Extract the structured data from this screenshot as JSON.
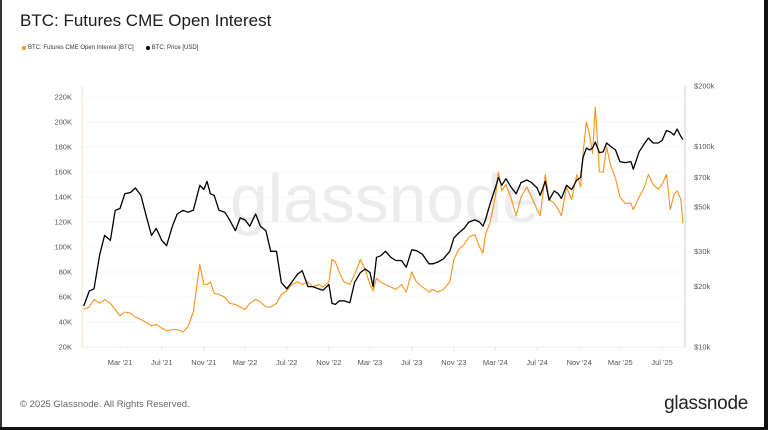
{
  "title": "BTC: Futures CME Open Interest",
  "footer": "© 2025 Glassnode. All Rights Reserved.",
  "logo": "glassnode",
  "watermark": "glassnode",
  "chart_data": {
    "type": "line",
    "title": "BTC: Futures CME Open Interest",
    "legend_position": "top-left",
    "grid": true,
    "x_range": [
      "2020-11-10",
      "2025-09-06"
    ],
    "x_tick_labels": [
      "Mar '21",
      "Jul '21",
      "Nov '21",
      "Mar '22",
      "Jul '22",
      "Nov '22",
      "Mar '23",
      "Jul '23",
      "Nov '23",
      "Mar '24",
      "Jul '24",
      "Nov '24",
      "Mar '25",
      "Jul '25"
    ],
    "x_tick_dates": [
      "2021-03-01",
      "2021-07-01",
      "2021-11-01",
      "2022-03-01",
      "2022-07-01",
      "2022-11-01",
      "2023-03-01",
      "2023-07-01",
      "2023-11-01",
      "2024-03-01",
      "2024-07-01",
      "2024-11-01",
      "2025-03-01",
      "2025-07-01"
    ],
    "y_left": {
      "range": [
        20000,
        220000
      ],
      "scale": "linear",
      "ticks": [
        20000,
        40000,
        60000,
        80000,
        100000,
        120000,
        140000,
        160000,
        180000,
        200000,
        220000
      ],
      "tick_labels": [
        "20K",
        "40K",
        "60K",
        "80K",
        "100K",
        "120K",
        "140K",
        "160K",
        "180K",
        "200K",
        "220K"
      ]
    },
    "y_right": {
      "range": [
        10000,
        200000
      ],
      "scale": "log",
      "ticks": [
        10000,
        20000,
        30000,
        50000,
        70000,
        100000,
        200000
      ],
      "tick_labels": [
        "$10k",
        "$20k",
        "$30k",
        "$50k",
        "$70k",
        "$100k",
        "$200k"
      ]
    },
    "series": [
      {
        "name": "BTC: Futures CME Open Interest [BTC]",
        "color": "#f7931a",
        "axis": "left"
      },
      {
        "name": "BTC: Price [USD]",
        "color": "#000000",
        "axis": "right"
      }
    ],
    "points": [
      [
        "2020-11-15",
        50000,
        16000
      ],
      [
        "2020-12-01",
        52000,
        19000
      ],
      [
        "2020-12-15",
        58000,
        19500
      ],
      [
        "2021-01-01",
        55000,
        29000
      ],
      [
        "2021-01-15",
        58000,
        36000
      ],
      [
        "2021-02-01",
        55000,
        34000
      ],
      [
        "2021-02-15",
        50000,
        48000
      ],
      [
        "2021-03-01",
        45000,
        49000
      ],
      [
        "2021-03-15",
        48000,
        58000
      ],
      [
        "2021-04-01",
        47000,
        59000
      ],
      [
        "2021-04-15",
        44000,
        62000
      ],
      [
        "2021-05-01",
        42000,
        57000
      ],
      [
        "2021-05-15",
        40000,
        46000
      ],
      [
        "2021-06-01",
        37000,
        36000
      ],
      [
        "2021-06-15",
        38000,
        39000
      ],
      [
        "2021-07-01",
        35000,
        34000
      ],
      [
        "2021-07-15",
        33000,
        32000
      ],
      [
        "2021-08-01",
        34000,
        40000
      ],
      [
        "2021-08-15",
        34000,
        46000
      ],
      [
        "2021-09-01",
        32000,
        48000
      ],
      [
        "2021-09-15",
        36000,
        47000
      ],
      [
        "2021-10-01",
        48000,
        48000
      ],
      [
        "2021-10-20",
        86000,
        64000
      ],
      [
        "2021-11-01",
        70000,
        61000
      ],
      [
        "2021-11-10",
        70000,
        67000
      ],
      [
        "2021-11-20",
        72000,
        58000
      ],
      [
        "2021-12-01",
        63000,
        57000
      ],
      [
        "2021-12-15",
        62000,
        48000
      ],
      [
        "2022-01-01",
        60000,
        47000
      ],
      [
        "2022-01-15",
        55000,
        43000
      ],
      [
        "2022-02-01",
        54000,
        38000
      ],
      [
        "2022-02-15",
        52000,
        44000
      ],
      [
        "2022-03-01",
        50000,
        43000
      ],
      [
        "2022-03-15",
        55000,
        40000
      ],
      [
        "2022-04-01",
        58000,
        46000
      ],
      [
        "2022-04-15",
        56000,
        40000
      ],
      [
        "2022-05-01",
        52000,
        38000
      ],
      [
        "2022-05-15",
        52000,
        30000
      ],
      [
        "2022-06-01",
        55000,
        30000
      ],
      [
        "2022-06-15",
        62000,
        21000
      ],
      [
        "2022-07-01",
        65000,
        19500
      ],
      [
        "2022-07-15",
        70000,
        21000
      ],
      [
        "2022-08-01",
        72000,
        23000
      ],
      [
        "2022-08-15",
        70000,
        24000
      ],
      [
        "2022-09-01",
        72000,
        20000
      ],
      [
        "2022-09-15",
        68000,
        20000
      ],
      [
        "2022-10-01",
        70000,
        19500
      ],
      [
        "2022-10-15",
        68000,
        19200
      ],
      [
        "2022-11-01",
        72000,
        20500
      ],
      [
        "2022-11-10",
        90000,
        16500
      ],
      [
        "2022-11-20",
        88000,
        16300
      ],
      [
        "2022-12-01",
        80000,
        17000
      ],
      [
        "2022-12-15",
        72000,
        17000
      ],
      [
        "2023-01-01",
        70000,
        16600
      ],
      [
        "2023-01-15",
        78000,
        21000
      ],
      [
        "2023-02-01",
        90000,
        23500
      ],
      [
        "2023-02-15",
        82000,
        24500
      ],
      [
        "2023-03-01",
        70000,
        23500
      ],
      [
        "2023-03-10",
        65000,
        20000
      ],
      [
        "2023-03-20",
        75000,
        28000
      ],
      [
        "2023-04-01",
        72000,
        28500
      ],
      [
        "2023-04-15",
        70000,
        30000
      ],
      [
        "2023-05-01",
        68000,
        28000
      ],
      [
        "2023-05-15",
        66000,
        27000
      ],
      [
        "2023-06-01",
        70000,
        27000
      ],
      [
        "2023-06-15",
        64000,
        25000
      ],
      [
        "2023-07-01",
        80000,
        30500
      ],
      [
        "2023-07-15",
        72000,
        30200
      ],
      [
        "2023-08-01",
        68000,
        29000
      ],
      [
        "2023-08-20",
        64000,
        26000
      ],
      [
        "2023-09-01",
        66000,
        26000
      ],
      [
        "2023-09-15",
        64000,
        26500
      ],
      [
        "2023-10-01",
        66000,
        27500
      ],
      [
        "2023-10-20",
        72000,
        30000
      ],
      [
        "2023-11-01",
        90000,
        35000
      ],
      [
        "2023-11-15",
        98000,
        37000
      ],
      [
        "2023-12-01",
        102000,
        39000
      ],
      [
        "2023-12-15",
        108000,
        42000
      ],
      [
        "2024-01-01",
        110000,
        43000
      ],
      [
        "2024-01-15",
        100000,
        42000
      ],
      [
        "2024-01-25",
        95000,
        40000
      ],
      [
        "2024-02-01",
        110000,
        43000
      ],
      [
        "2024-02-15",
        120000,
        52000
      ],
      [
        "2024-03-01",
        140000,
        62000
      ],
      [
        "2024-03-10",
        160000,
        70000
      ],
      [
        "2024-03-20",
        145000,
        64000
      ],
      [
        "2024-04-01",
        150000,
        69000
      ],
      [
        "2024-04-15",
        140000,
        63000
      ],
      [
        "2024-05-01",
        125000,
        58000
      ],
      [
        "2024-05-15",
        140000,
        66000
      ],
      [
        "2024-06-01",
        148000,
        68000
      ],
      [
        "2024-06-15",
        140000,
        66000
      ],
      [
        "2024-07-01",
        130000,
        62000
      ],
      [
        "2024-07-10",
        125000,
        57000
      ],
      [
        "2024-07-25",
        158000,
        67000
      ],
      [
        "2024-08-05",
        138000,
        54000
      ],
      [
        "2024-08-20",
        135000,
        60000
      ],
      [
        "2024-09-01",
        130000,
        58000
      ],
      [
        "2024-09-10",
        125000,
        55000
      ],
      [
        "2024-09-25",
        148000,
        64000
      ],
      [
        "2024-10-10",
        138000,
        61000
      ],
      [
        "2024-10-25",
        158000,
        68000
      ],
      [
        "2024-11-05",
        148000,
        70000
      ],
      [
        "2024-11-12",
        175000,
        88000
      ],
      [
        "2024-11-22",
        200000,
        98000
      ],
      [
        "2024-12-01",
        190000,
        96000
      ],
      [
        "2024-12-10",
        175000,
        98000
      ],
      [
        "2024-12-18",
        212000,
        105000
      ],
      [
        "2024-12-30",
        160000,
        93000
      ],
      [
        "2025-01-10",
        160000,
        94000
      ],
      [
        "2025-01-20",
        180000,
        104000
      ],
      [
        "2025-02-01",
        165000,
        100000
      ],
      [
        "2025-02-15",
        155000,
        96000
      ],
      [
        "2025-02-28",
        140000,
        84000
      ],
      [
        "2025-03-15",
        135000,
        83000
      ],
      [
        "2025-04-01",
        135000,
        84000
      ],
      [
        "2025-04-08",
        130000,
        77000
      ],
      [
        "2025-04-25",
        140000,
        94000
      ],
      [
        "2025-05-10",
        148000,
        103000
      ],
      [
        "2025-05-22",
        158000,
        110000
      ],
      [
        "2025-06-05",
        150000,
        104000
      ],
      [
        "2025-06-20",
        146000,
        104000
      ],
      [
        "2025-07-01",
        150000,
        107000
      ],
      [
        "2025-07-14",
        158000,
        120000
      ],
      [
        "2025-07-25",
        130000,
        118000
      ],
      [
        "2025-08-05",
        142000,
        114000
      ],
      [
        "2025-08-14",
        145000,
        122000
      ],
      [
        "2025-08-25",
        138000,
        112000
      ],
      [
        "2025-08-31",
        119000,
        108000
      ]
    ]
  }
}
